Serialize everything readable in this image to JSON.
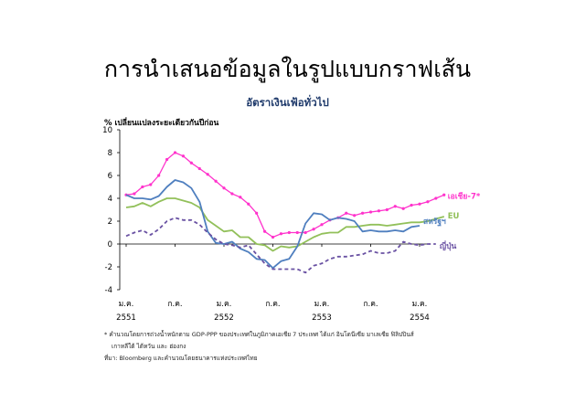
{
  "slide_title": "การนำเสนอข้อมูลในรูปแบบกราฟเส้น",
  "notes": {
    "footnote_line1": "* คำนวณโดยการถ่วงน้ำหนักตาม GDP-PPP ของประเทศในภูมิภาคเอเชีย 7 ประเทศ ได้แก่ อินโดนีเซีย มาเลเซีย ฟิลิปปินส์",
    "footnote_line2": "เกาหลีใต้ ไต้หวัน และ ฮ่องกง",
    "source": "ที่มา:  Bloomberg และคำนวณโดยธนาคารแห่งประเทศไทย"
  },
  "chart_data": {
    "type": "line",
    "title": "อัตราเงินเฟ้อทั่วไป",
    "ylabel": "% เปลี่ยนแปลงระยะเดียวกันปีก่อน",
    "xlabel": "",
    "ylim": [
      -4,
      10
    ],
    "yticks": [
      -4,
      -2,
      0,
      2,
      4,
      6,
      8,
      10
    ],
    "x_tick_labels": [
      {
        "month": 0,
        "label1": "ม.ค.",
        "label2": "2551"
      },
      {
        "month": 6,
        "label1": "ก.ค.",
        "label2": ""
      },
      {
        "month": 12,
        "label1": "ม.ค.",
        "label2": "2552"
      },
      {
        "month": 18,
        "label1": "ก.ค.",
        "label2": ""
      },
      {
        "month": 24,
        "label1": "ม.ค.",
        "label2": "2553"
      },
      {
        "month": 30,
        "label1": "ก.ค.",
        "label2": ""
      },
      {
        "month": 36,
        "label1": "ม.ค.",
        "label2": "2554"
      }
    ],
    "grid": false,
    "legend": "inline labels at right end of each line",
    "series": [
      {
        "name": "เอเชีย-7*",
        "color": "#ff33cc",
        "style": "solid-with-markers",
        "values": [
          4.3,
          4.4,
          5.0,
          5.2,
          6.0,
          7.4,
          8.0,
          7.7,
          7.1,
          6.6,
          6.1,
          5.5,
          4.9,
          4.4,
          4.1,
          3.5,
          2.7,
          1.1,
          0.6,
          0.9,
          1.0,
          1.0,
          1.0,
          1.3,
          1.7,
          2.1,
          2.3,
          2.7,
          2.5,
          2.7,
          2.8,
          2.9,
          3.0,
          3.3,
          3.1,
          3.4,
          3.5,
          3.7,
          4.0,
          4.3
        ]
      },
      {
        "name": "EU",
        "color": "#92c05a",
        "style": "solid",
        "values": [
          3.2,
          3.3,
          3.6,
          3.3,
          3.7,
          4.0,
          4.0,
          3.8,
          3.6,
          3.2,
          2.1,
          1.6,
          1.1,
          1.2,
          0.6,
          0.6,
          0.0,
          -0.1,
          -0.6,
          -0.2,
          -0.3,
          -0.2,
          0.2,
          0.6,
          0.9,
          1.0,
          1.0,
          1.5,
          1.5,
          1.6,
          1.7,
          1.7,
          1.6,
          1.7,
          1.8,
          1.9,
          1.9,
          2.0,
          2.2,
          2.4
        ]
      },
      {
        "name": "สหรัฐฯ",
        "color": "#4f7fbf",
        "style": "solid",
        "values": [
          4.3,
          4.0,
          4.0,
          3.9,
          4.2,
          5.0,
          5.6,
          5.4,
          4.9,
          3.7,
          1.1,
          0.1,
          0.0,
          0.2,
          -0.4,
          -0.7,
          -1.3,
          -1.4,
          -2.1,
          -1.5,
          -1.3,
          -0.2,
          1.8,
          2.7,
          2.6,
          2.1,
          2.3,
          2.2,
          2.0,
          1.1,
          1.2,
          1.1,
          1.1,
          1.2,
          1.1,
          1.5,
          1.6
        ]
      },
      {
        "name": "ญี่ปุ่น",
        "color": "#6a52a3",
        "style": "dashed",
        "values": [
          0.7,
          1.0,
          1.2,
          0.8,
          1.3,
          2.0,
          2.3,
          2.1,
          2.1,
          1.7,
          1.0,
          0.4,
          0.0,
          -0.1,
          -0.3,
          -0.1,
          -0.9,
          -1.7,
          -2.2,
          -2.2,
          -2.2,
          -2.2,
          -2.5,
          -1.9,
          -1.7,
          -1.3,
          -1.1,
          -1.1,
          -1.0,
          -0.9,
          -0.6,
          -0.8,
          -0.8,
          -0.6,
          0.2,
          0.0,
          -0.1,
          0.0,
          0.0
        ]
      }
    ]
  }
}
